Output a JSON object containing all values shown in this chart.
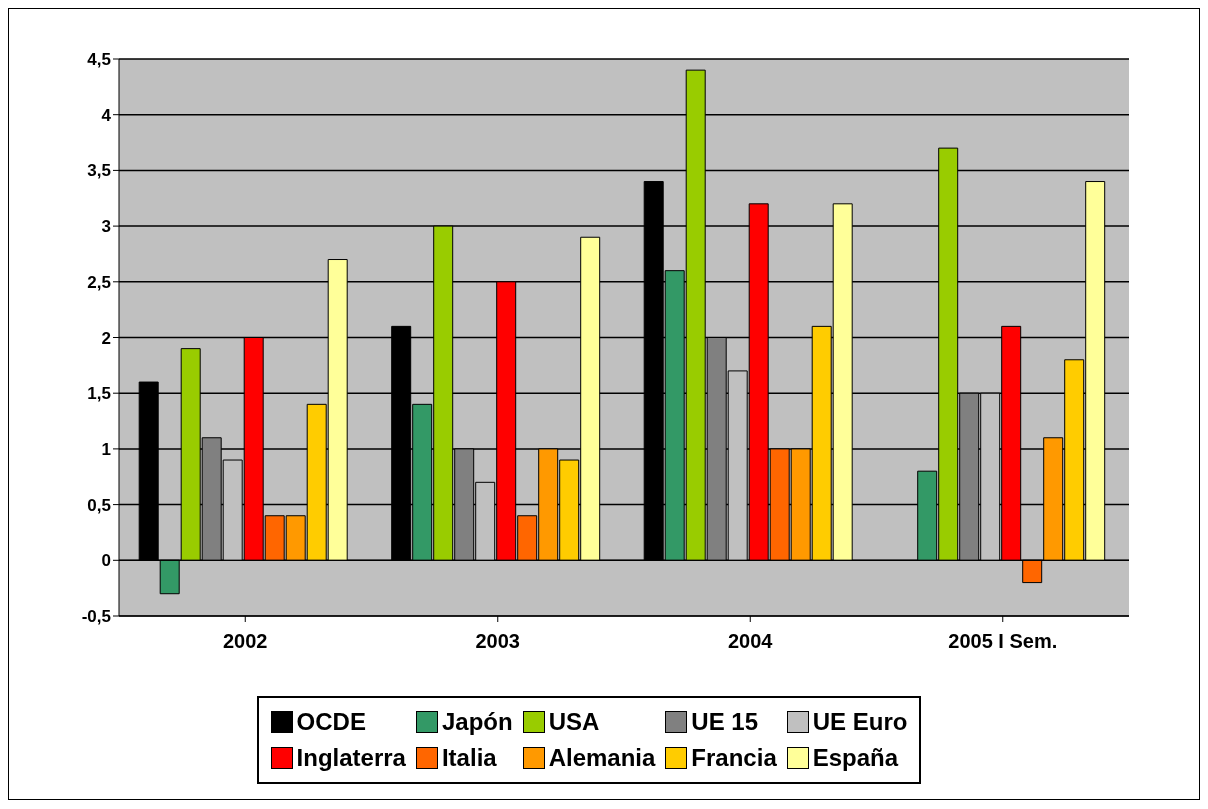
{
  "chart_data": {
    "type": "bar",
    "categories": [
      "2002",
      "2003",
      "2004",
      "2005 I Sem."
    ],
    "series": [
      {
        "name": "OCDE",
        "color": "#000000",
        "values": [
          1.6,
          2.1,
          3.4,
          null
        ]
      },
      {
        "name": "Japón",
        "color": "#339966",
        "values": [
          -0.3,
          1.4,
          2.6,
          0.8
        ]
      },
      {
        "name": "USA",
        "color": "#99cc00",
        "values": [
          1.9,
          3.0,
          4.4,
          3.7
        ]
      },
      {
        "name": "UE 15",
        "color": "#808080",
        "values": [
          1.1,
          1.0,
          2.0,
          1.5
        ]
      },
      {
        "name": "UE Euro",
        "color": "#c0c0c0",
        "values": [
          0.9,
          0.7,
          1.7,
          1.5
        ]
      },
      {
        "name": "Inglaterra",
        "color": "#ff0000",
        "values": [
          2.0,
          2.5,
          3.2,
          2.1
        ]
      },
      {
        "name": "Italia",
        "color": "#ff6600",
        "values": [
          0.4,
          0.4,
          1.0,
          -0.2
        ]
      },
      {
        "name": "Alemania",
        "color": "#ff9900",
        "values": [
          0.4,
          1.0,
          1.0,
          1.1
        ]
      },
      {
        "name": "Francia",
        "color": "#ffcc00",
        "values": [
          1.4,
          0.9,
          2.1,
          1.8
        ]
      },
      {
        "name": "España",
        "color": "#ffff99",
        "values": [
          2.7,
          2.9,
          3.2,
          3.4
        ]
      }
    ],
    "ylim": [
      -0.5,
      4.5
    ],
    "yticks": [
      {
        "value": -0.5,
        "label": "-0,5"
      },
      0,
      {
        "value": 0.5,
        "label": "0,5"
      },
      1,
      {
        "value": 1.5,
        "label": "1,5"
      },
      2,
      {
        "value": 2.5,
        "label": "2,5"
      },
      3,
      {
        "value": 3.5,
        "label": "3,5"
      },
      4,
      {
        "value": 4.5,
        "label": "4,5"
      }
    ],
    "grid": "y",
    "legend": "bottom"
  }
}
